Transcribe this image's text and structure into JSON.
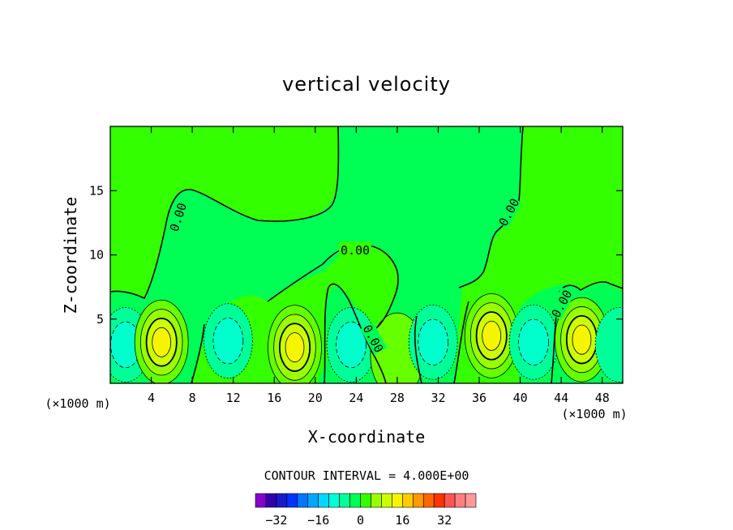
{
  "chart_data": {
    "type": "contour",
    "title": "vertical velocity",
    "xlabel": "X-coordinate",
    "ylabel": "Z-coordinate",
    "x_unit": "(×1000 m)",
    "y_unit": "(×1000 m)",
    "xlim": [
      0,
      50
    ],
    "ylim": [
      0,
      20
    ],
    "x_ticks": [
      4,
      8,
      12,
      16,
      20,
      24,
      28,
      32,
      36,
      40,
      44,
      48
    ],
    "y_ticks": [
      5,
      10,
      15
    ],
    "contour_interval_text": "CONTOUR INTERVAL = 4.000E+00",
    "contour_interval": 4,
    "zero_contour_labels": [
      "0.00",
      "0.00",
      "0.00",
      "0.00",
      "0.00",
      "0.00"
    ],
    "colorbar": {
      "levels": [
        -36,
        -32,
        -28,
        -24,
        -20,
        -16,
        -12,
        -8,
        -4,
        0,
        4,
        8,
        12,
        16,
        20,
        24,
        28,
        32,
        36
      ],
      "tick_labels": [
        {
          "value": -32,
          "label": "−32"
        },
        {
          "value": -16,
          "label": "−16"
        },
        {
          "value": 0,
          "label": "0"
        },
        {
          "value": 16,
          "label": "16"
        },
        {
          "value": 32,
          "label": "32"
        }
      ],
      "colors": [
        "#8800cc",
        "#3300aa",
        "#1a1acc",
        "#0033ff",
        "#0077ff",
        "#00a8ff",
        "#00d8ff",
        "#00ffd8",
        "#00ff99",
        "#00ff55",
        "#33ff00",
        "#99ff00",
        "#ccff00",
        "#f5f500",
        "#ffcc00",
        "#ff9900",
        "#ff6600",
        "#ff3300",
        "#ff5555",
        "#ff8080",
        "#ff9999"
      ]
    },
    "cells": [
      {
        "sign": "neg",
        "x": 1.5,
        "z": 3.0,
        "peak": -8
      },
      {
        "sign": "pos",
        "x": 5.0,
        "z": 3.2,
        "peak": 14
      },
      {
        "sign": "neg",
        "x": 11.5,
        "z": 3.3,
        "peak": -8
      },
      {
        "sign": "pos",
        "x": 18.0,
        "z": 2.8,
        "peak": 14
      },
      {
        "sign": "neg",
        "x": 23.5,
        "z": 3.0,
        "peak": -8
      },
      {
        "sign": "pos",
        "x": 28.0,
        "z": 2.2,
        "peak": 4
      },
      {
        "sign": "neg",
        "x": 31.5,
        "z": 3.2,
        "peak": -8
      },
      {
        "sign": "pos",
        "x": 37.2,
        "z": 3.7,
        "peak": 16
      },
      {
        "sign": "neg",
        "x": 41.3,
        "z": 3.2,
        "peak": -8
      },
      {
        "sign": "pos",
        "x": 46.0,
        "z": 3.4,
        "peak": 16
      },
      {
        "sign": "neg",
        "x": 49.7,
        "z": 3.0,
        "peak": -4
      }
    ]
  }
}
